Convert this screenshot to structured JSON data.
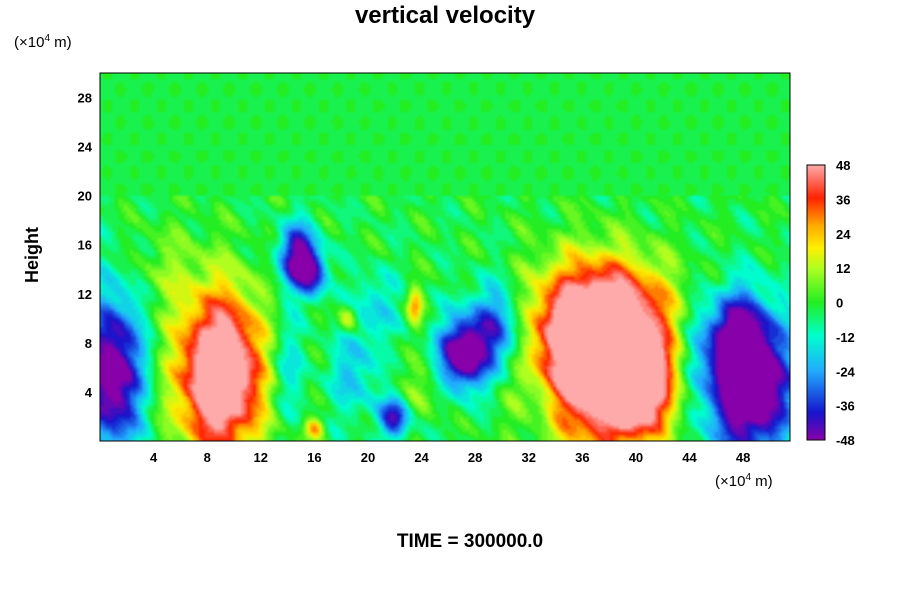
{
  "chart_data": {
    "type": "heatmap",
    "title": "vertical velocity",
    "ylabel": "Height",
    "y_unit": {
      "prefix": "(×10",
      "exp": "4",
      "suffix": " m)"
    },
    "x_unit": {
      "prefix": "(×10",
      "exp": "4",
      "suffix": " m)"
    },
    "xlim": [
      0,
      51.5
    ],
    "ylim": [
      0,
      30
    ],
    "xticks": [
      4,
      8,
      12,
      16,
      20,
      24,
      28,
      32,
      36,
      40,
      44,
      48
    ],
    "yticks": [
      4,
      8,
      12,
      16,
      20,
      24,
      28
    ],
    "colorbar": {
      "range": [
        -48,
        48
      ],
      "ticks": [
        48,
        36,
        24,
        12,
        0,
        -12,
        -24,
        -36,
        -48
      ]
    },
    "background_value": -2,
    "features": [
      {
        "x": 9.0,
        "y": 5.5,
        "value": 75,
        "sx": 2.2,
        "sy": 4.5
      },
      {
        "x": 36.5,
        "y": 6.5,
        "value": 65,
        "sx": 3.0,
        "sy": 4.5
      },
      {
        "x": 40.0,
        "y": 4.5,
        "value": 60,
        "sx": 2.0,
        "sy": 3.0
      },
      {
        "x": 38.0,
        "y": 10.5,
        "value": 40,
        "sx": 3.5,
        "sy": 3.0
      },
      {
        "x": 1.0,
        "y": 5.5,
        "value": -55,
        "sx": 1.5,
        "sy": 4.5
      },
      {
        "x": 48.5,
        "y": 4.5,
        "value": -65,
        "sx": 2.2,
        "sy": 4.0
      },
      {
        "x": 47.5,
        "y": 8.5,
        "value": -35,
        "sx": 1.5,
        "sy": 2.5
      },
      {
        "x": 27.0,
        "y": 7.0,
        "value": -55,
        "sx": 1.2,
        "sy": 2.0
      },
      {
        "x": 29.5,
        "y": 9.0,
        "value": -35,
        "sx": 1.5,
        "sy": 2.5
      },
      {
        "x": 14.8,
        "y": 15.0,
        "value": -50,
        "sx": 1.0,
        "sy": 1.8
      },
      {
        "x": 16.0,
        "y": 13.5,
        "value": -30,
        "sx": 0.7,
        "sy": 1.2
      },
      {
        "x": 22.0,
        "y": 2.0,
        "value": -40,
        "sx": 0.8,
        "sy": 1.2
      },
      {
        "x": 19.0,
        "y": 5.5,
        "value": -18,
        "sx": 1.2,
        "sy": 2.5
      },
      {
        "x": 14.0,
        "y": 6.0,
        "value": -15,
        "sx": 1.0,
        "sy": 3.0
      },
      {
        "x": 20.5,
        "y": 11.0,
        "value": -15,
        "sx": 1.2,
        "sy": 2.0
      },
      {
        "x": 23.5,
        "y": 11.0,
        "value": 28,
        "sx": 0.4,
        "sy": 1.0
      },
      {
        "x": 18.5,
        "y": 10.0,
        "value": 22,
        "sx": 0.5,
        "sy": 0.8
      },
      {
        "x": 16.0,
        "y": 1.0,
        "value": 28,
        "sx": 0.5,
        "sy": 0.6
      },
      {
        "x": 24.0,
        "y": 4.0,
        "value": 10,
        "sx": 1.5,
        "sy": 1.5
      },
      {
        "x": 33.0,
        "y": 3.0,
        "value": -12,
        "sx": 1.0,
        "sy": 2.0
      },
      {
        "x": 44.5,
        "y": 8.0,
        "value": -10,
        "sx": 1.0,
        "sy": 3.0
      },
      {
        "x": 5.0,
        "y": 14.0,
        "value": 8,
        "sx": 2.0,
        "sy": 2.5
      }
    ]
  },
  "footer": "TIME = 300000.0"
}
